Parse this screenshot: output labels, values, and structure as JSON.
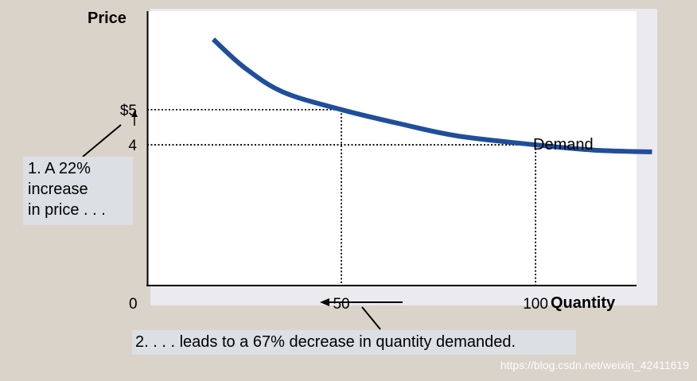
{
  "chart_data": {
    "type": "line",
    "title": "",
    "xlabel": "Quantity",
    "ylabel": "Price",
    "origin_label": "0",
    "x_ticks": [
      "50",
      "100"
    ],
    "y_ticks": [
      "$5",
      "4"
    ],
    "series": [
      {
        "name": "Demand",
        "x": [
          17,
          25,
          35,
          50,
          65,
          80,
          100,
          115,
          130
        ],
        "y": [
          7.0,
          6.2,
          5.5,
          5.0,
          4.6,
          4.25,
          4.0,
          3.85,
          3.8
        ]
      }
    ],
    "highlight_points": [
      {
        "x": 50,
        "y": 5
      },
      {
        "x": 100,
        "y": 4
      }
    ],
    "xlim": [
      0,
      126
    ],
    "ylim": [
      0,
      7.8
    ],
    "grid": false,
    "annotations": {
      "price_increase_lines": [
        "1. A 22%",
        "increase",
        "in price . . ."
      ],
      "quantity_decrease": "2. . . . leads to a 67% decrease in quantity demanded."
    },
    "colors": {
      "curve": "#1f4f9a",
      "plot_background": "#ffffff",
      "page_background": "#d9d3ca",
      "callout_background": "#dcdfe3"
    }
  },
  "watermark": "https://blog.csdn.net/weixin_42411619"
}
